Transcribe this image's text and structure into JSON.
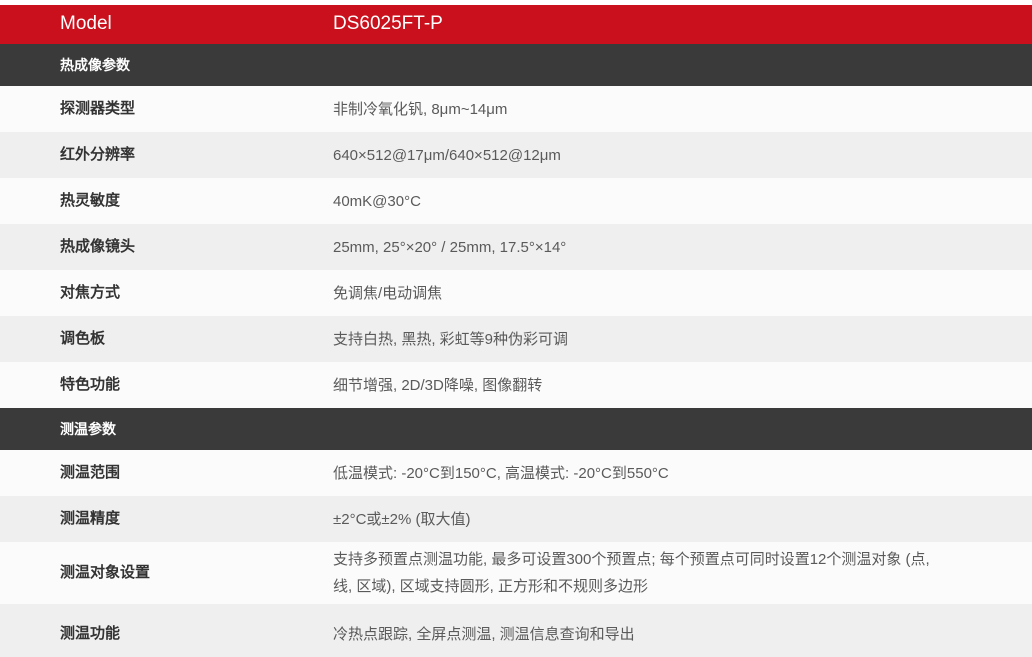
{
  "header": {
    "model_label": "Model",
    "model_value": "DS6025FT-P"
  },
  "colors": {
    "accent_red": "#c9101c",
    "section_bar_dark": "#3a3a3a",
    "row_alt_grey": "#efefef",
    "row_white": "#fbfbfb"
  },
  "sections": [
    {
      "title": "热成像参数",
      "rows": [
        {
          "label": "探测器类型",
          "value": "非制冷氧化钒, 8μm~14μm"
        },
        {
          "label": "红外分辨率",
          "value": "640×512@17μm/640×512@12μm"
        },
        {
          "label": "热灵敏度",
          "value": "40mK@30°C"
        },
        {
          "label": "热成像镜头",
          "value": "25mm, 25°×20° / 25mm, 17.5°×14°"
        },
        {
          "label": "对焦方式",
          "value": "免调焦/电动调焦"
        },
        {
          "label": "调色板",
          "value": "支持白热, 黑热, 彩虹等9种伪彩可调"
        },
        {
          "label": "特色功能",
          "value": "细节增强, 2D/3D降噪, 图像翻转"
        }
      ]
    },
    {
      "title": "测温参数",
      "rows": [
        {
          "label": "测温范围",
          "value": "低温模式: -20°C到150°C, 高温模式: -20°C到550°C"
        },
        {
          "label": "测温精度",
          "value": "±2°C或±2% (取大值)"
        },
        {
          "label": "测温对象设置",
          "value": "支持多预置点测温功能, 最多可设置300个预置点; 每个预置点可同时设置12个测温对象 (点, 线, 区域), 区域支持圆形, 正方形和不规则多边形"
        },
        {
          "label": "测温功能",
          "value": "冷热点跟踪, 全屏点测温, 测温信息查询和导出"
        }
      ]
    }
  ]
}
